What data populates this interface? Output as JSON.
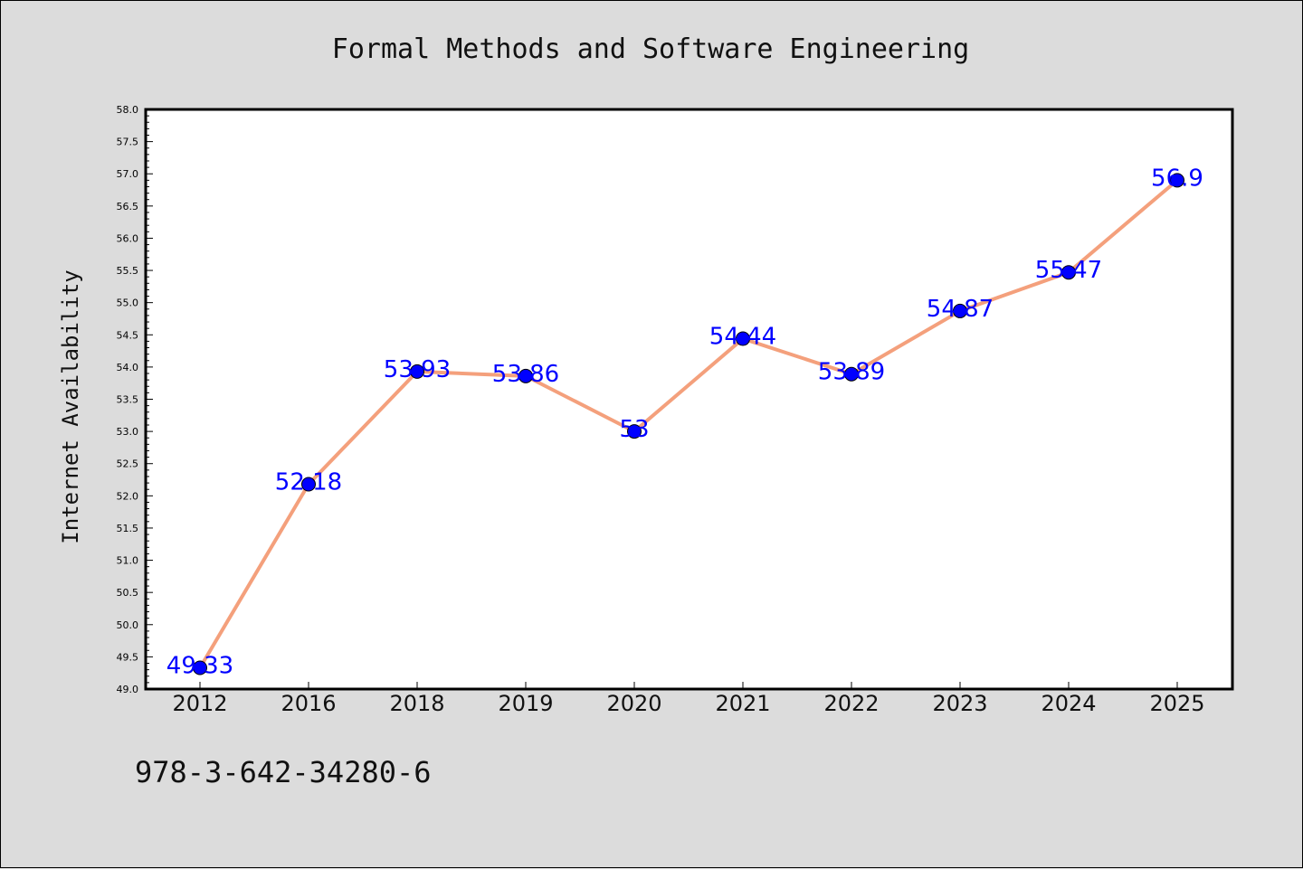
{
  "colors": {
    "background": "#dcdcdc",
    "plot_background": "#ffffff",
    "line": "#f4a07c",
    "marker": "#0000ff",
    "data_label": "#0000ff"
  },
  "footer": {
    "isbn": "978-3-642-34280-6"
  },
  "chart_data": {
    "type": "line",
    "title": "Formal Methods and Software Engineering",
    "xlabel": "",
    "ylabel": "Internet Availability",
    "categories": [
      "2012",
      "2016",
      "2018",
      "2019",
      "2020",
      "2021",
      "2022",
      "2023",
      "2024",
      "2025"
    ],
    "series": [
      {
        "values": [
          49.33,
          52.18,
          53.93,
          53.86,
          53,
          54.44,
          53.89,
          54.87,
          55.47,
          56.9
        ],
        "data_labels": [
          "49.33",
          "52.18",
          "53.93",
          "53.86",
          "53",
          "54.44",
          "53.89",
          "54.87",
          "55.47",
          "56.9"
        ]
      }
    ],
    "ylim": [
      49.0,
      58.0
    ],
    "yticks": [
      "49.0",
      "49.5",
      "50.0",
      "50.5",
      "51.0",
      "51.5",
      "52.0",
      "52.5",
      "53.0",
      "53.5",
      "54.0",
      "54.5",
      "55.0",
      "55.5",
      "56.0",
      "56.5",
      "57.0",
      "57.5",
      "58.0"
    ],
    "grid": false,
    "legend": "none",
    "markers": "circle"
  }
}
